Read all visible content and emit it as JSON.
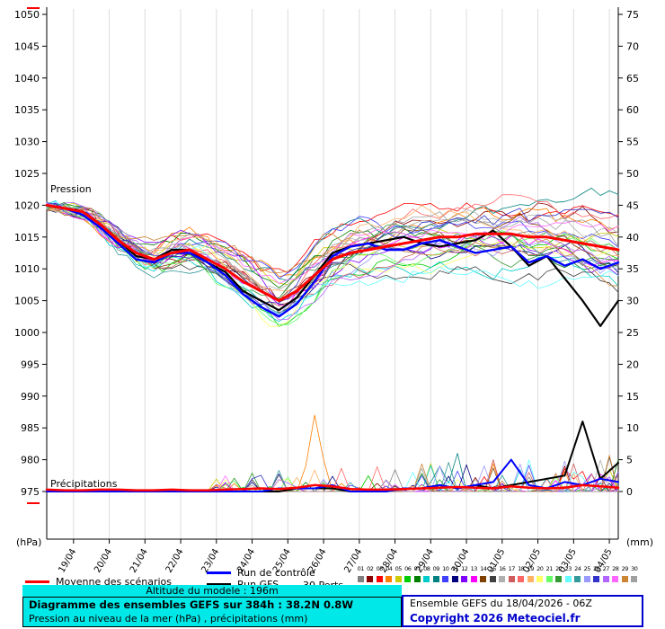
{
  "axes": {
    "left_unit": "(hPa)",
    "right_unit": "(mm)",
    "pressure_ticks": [
      1050,
      1045,
      1040,
      1035,
      1030,
      1025,
      1020,
      1015,
      1010,
      1005,
      1000,
      995,
      990,
      985,
      980,
      975
    ],
    "precip_ticks": [
      75,
      70,
      65,
      60,
      55,
      50,
      45,
      40,
      35,
      30,
      25,
      20,
      15,
      10,
      5,
      0
    ],
    "x_labels": [
      "19/04",
      "20/04",
      "21/04",
      "22/04",
      "23/04",
      "24/04",
      "25/04",
      "26/04",
      "27/04",
      "28/04",
      "29/04",
      "30/04",
      "01/05",
      "02/05",
      "03/05",
      "04/05"
    ]
  },
  "annotations": {
    "pressure_label": "Pression",
    "precip_label": "Précipitations"
  },
  "legend": {
    "mean_label": "Moyenne des scénarios",
    "control_label": "Run de contrôle",
    "gfs_label": "Run GFS",
    "perts_label": "30 Perts.",
    "member_numbers": [
      "01",
      "02",
      "03",
      "04",
      "05",
      "06",
      "07",
      "08",
      "09",
      "10",
      "11",
      "12",
      "13",
      "14",
      "15",
      "16",
      "17",
      "18",
      "19",
      "20",
      "21",
      "22",
      "23",
      "24",
      "25",
      "26",
      "27",
      "28",
      "29",
      "30"
    ],
    "member_colors": [
      "#808080",
      "#8b0000",
      "#ff0000",
      "#ff7f00",
      "#cccc00",
      "#00cc00",
      "#007f00",
      "#00cccc",
      "#008080",
      "#4040ff",
      "#00007f",
      "#7f00ff",
      "#ff00ff",
      "#7f3f00",
      "#404040",
      "#b0b0b0",
      "#cd5c5c",
      "#ff6666",
      "#ffb266",
      "#ffff66",
      "#66ff66",
      "#339933",
      "#66ffff",
      "#339999",
      "#9999ff",
      "#3333cc",
      "#b266ff",
      "#ff66ff",
      "#cc8533",
      "#a0a0a0"
    ]
  },
  "footer": {
    "altitude": "Altitude du modele : 196m",
    "line1": "Diagramme des ensembles GEFS sur 384h : 38.2N 0.8W",
    "line2": "Pression au niveau de la mer (hPa) , précipitations (mm)",
    "run_info": "Ensemble GEFS du 18/04/2026 - 06Z",
    "copyright": "Copyright 2026 Meteociel.fr"
  },
  "colors": {
    "mean": "#ff0000",
    "control": "#0000ff",
    "gfs": "#000000",
    "grid": "#dcdcdc",
    "axis": "#000000",
    "footer_bg": "#00e8e8",
    "box_border_blue": "#0000cc",
    "copyright_blue": "#0000cc"
  },
  "chart_data": {
    "type": "line",
    "title": "Diagramme des ensembles GEFS sur 384h : 38.2N 0.8W",
    "ylabel_left": "Pression (hPa)",
    "ylabel_right": "Précipitations (mm)",
    "ylim_pressure": [
      975,
      1050
    ],
    "ylim_precip": [
      0,
      75
    ],
    "run_start": "18/04/2026 06Z",
    "forecast_hours": 384,
    "x_hours": [
      0,
      12,
      24,
      36,
      48,
      60,
      72,
      84,
      96,
      108,
      120,
      132,
      144,
      156,
      168,
      180,
      192,
      204,
      216,
      228,
      240,
      252,
      264,
      276,
      288,
      300,
      312,
      324,
      336,
      348,
      360,
      372,
      384
    ],
    "x_tick_hours": [
      18,
      42,
      66,
      90,
      114,
      138,
      162,
      186,
      210,
      234,
      258,
      282,
      306,
      330,
      354,
      378
    ],
    "series": [
      {
        "name": "Moyenne des scénarios",
        "color": "#ff0000",
        "width": 3,
        "pressure": [
          1020,
          1019.5,
          1019,
          1017,
          1014.5,
          1012.5,
          1011.5,
          1012.5,
          1013,
          1011.5,
          1010,
          1008,
          1006.5,
          1005,
          1006.5,
          1009,
          1011.5,
          1012.5,
          1013,
          1013.5,
          1014,
          1014.5,
          1015,
          1015,
          1015.5,
          1015.5,
          1015.5,
          1015,
          1015,
          1014.5,
          1014,
          1013.5,
          1013
        ],
        "precip": [
          0.3,
          0.2,
          0.2,
          0.3,
          0.3,
          0.2,
          0.2,
          0.3,
          0.2,
          0.2,
          0.3,
          0.4,
          0.5,
          0.4,
          0.6,
          1.0,
          0.8,
          0.4,
          0.3,
          0.3,
          0.4,
          0.5,
          0.6,
          0.7,
          0.6,
          0.5,
          0.8,
          0.6,
          0.5,
          0.6,
          1.0,
          0.8,
          0.6
        ]
      },
      {
        "name": "Run de contrôle",
        "color": "#0000ff",
        "width": 2.4,
        "pressure": [
          1020,
          1019.5,
          1018.5,
          1016.5,
          1014,
          1011.5,
          1011,
          1012.5,
          1012.5,
          1011,
          1009,
          1006,
          1004,
          1002.5,
          1004.5,
          1008,
          1012,
          1013.5,
          1014,
          1013,
          1013,
          1014,
          1014.5,
          1013.5,
          1012.5,
          1013,
          1013.5,
          1011,
          1012,
          1010.5,
          1011.5,
          1010,
          1011
        ],
        "precip": [
          0,
          0,
          0,
          0,
          0,
          0,
          0,
          0,
          0,
          0,
          0,
          0,
          0,
          0.5,
          0.5,
          0.5,
          1,
          0,
          0,
          0,
          0.5,
          0.5,
          1,
          0.5,
          1,
          1.5,
          5,
          1,
          0.5,
          1.5,
          1,
          2,
          1.5
        ]
      },
      {
        "name": "Run GFS",
        "color": "#000000",
        "width": 2.2,
        "pressure": [
          1020,
          1019.5,
          1019,
          1017,
          1014.5,
          1012,
          1011.5,
          1013,
          1013,
          1011,
          1009.5,
          1006.5,
          1005,
          1003.5,
          1005.5,
          1009,
          1012.5,
          1013.5,
          1014,
          1014.5,
          1015,
          1014,
          1013.5,
          1014,
          1014.5,
          1016,
          1013.5,
          1010.5,
          1012,
          1008.5,
          1005,
          1001,
          1005
        ],
        "precip": [
          0,
          0,
          0,
          0,
          0,
          0,
          0,
          0,
          0,
          0,
          0,
          0,
          0,
          0,
          0.5,
          0.5,
          0.5,
          0,
          0,
          0,
          0.5,
          0.5,
          1,
          0.5,
          1,
          0.5,
          1,
          1.5,
          2,
          2.5,
          11,
          2,
          4.5
        ]
      }
    ],
    "ensemble": {
      "count": 30,
      "seed": 1234,
      "spread": [
        0.5,
        0.8,
        1,
        1.5,
        2,
        2.5,
        3,
        3,
        3.5,
        4,
        4.5,
        5,
        5.5,
        6,
        6,
        5.5,
        5,
        5,
        5.5,
        5.5,
        6,
        6,
        6.5,
        6.5,
        7,
        7,
        7.5,
        8,
        8,
        8.5,
        9,
        9.5,
        10
      ],
      "precip_events": [
        {
          "member": 3,
          "t": 174,
          "mm": 4
        },
        {
          "member": 3,
          "t": 180,
          "mm": 12
        },
        {
          "member": 3,
          "t": 186,
          "mm": 5
        },
        {
          "member": 8,
          "t": 264,
          "mm": 4
        },
        {
          "member": 8,
          "t": 276,
          "mm": 6
        },
        {
          "member": 16,
          "t": 300,
          "mm": 5
        }
      ]
    }
  }
}
